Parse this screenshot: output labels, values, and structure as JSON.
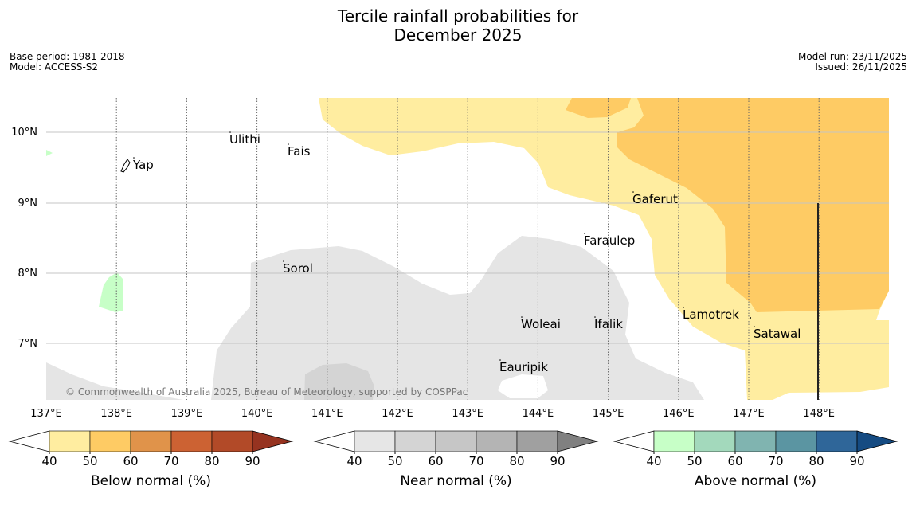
{
  "title": {
    "line1": "Tercile rainfall probabilities for",
    "line2": "December 2025"
  },
  "meta": {
    "base_period": "Base period: 1981-2018",
    "model": "Model: ACCESS-S2",
    "model_run": "Model run: 23/11/2025",
    "issued": "Issued: 26/11/2025"
  },
  "map": {
    "lat_labels": [
      "10°N",
      "9°N",
      "8°N",
      "7°N"
    ],
    "lon_labels": [
      "137°E",
      "138°E",
      "139°E",
      "140°E",
      "141°E",
      "142°E",
      "143°E",
      "144°E",
      "145°E",
      "146°E",
      "147°E",
      "148°E"
    ],
    "places": [
      {
        "name": "Ulithi"
      },
      {
        "name": "Fais"
      },
      {
        "name": "Yap"
      },
      {
        "name": "Gaferut"
      },
      {
        "name": "Faraulep"
      },
      {
        "name": "Sorol"
      },
      {
        "name": "Lamotrek"
      },
      {
        "name": "Woleai"
      },
      {
        "name": "Ifalik"
      },
      {
        "name": "Satawal"
      },
      {
        "name": "Eauripik"
      }
    ],
    "copyright": "© Commonwealth of Australia 2025, Bureau of Meteorology, supported by COSPPac",
    "colors": {
      "below_50": "#ffeda0",
      "below_60": "#fecb64",
      "near_40": "#e5e5e5",
      "near_50": "#d4d4d4",
      "above_40": "#c7ffc7"
    }
  },
  "legends": [
    {
      "label": "Below normal (%)",
      "ticks": [
        "40",
        "50",
        "60",
        "70",
        "80",
        "90"
      ],
      "colors": [
        "#ffffff",
        "#ffeda0",
        "#fecb64",
        "#e0934a",
        "#cc6233",
        "#b24a28",
        "#963320"
      ]
    },
    {
      "label": "Near normal (%)",
      "ticks": [
        "40",
        "50",
        "60",
        "70",
        "80",
        "90"
      ],
      "colors": [
        "#ffffff",
        "#e6e6e6",
        "#d4d4d4",
        "#c6c6c6",
        "#b4b4b4",
        "#a0a0a0",
        "#808080"
      ]
    },
    {
      "label": "Above normal (%)",
      "ticks": [
        "40",
        "50",
        "60",
        "70",
        "80",
        "90"
      ],
      "colors": [
        "#ffffff",
        "#c7ffc7",
        "#a3d9bc",
        "#80b4b0",
        "#5b95a2",
        "#2f6699",
        "#154b82"
      ]
    }
  ]
}
